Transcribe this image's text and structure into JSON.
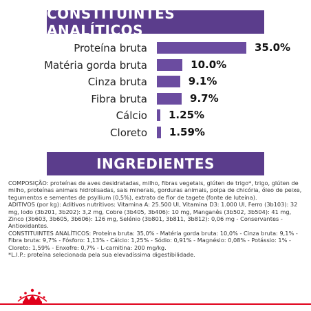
{
  "analytic_header": "CONSTITUINTES ANALÍTICOS",
  "ingredients_header": "INGREDIENTES",
  "nutrients": [
    {
      "label": "Proteína bruta",
      "value_text": "35.0%",
      "value": 35.0
    },
    {
      "label": "Matéria gorda bruta",
      "value_text": "10.0%",
      "value": 10.0
    },
    {
      "label": "Cinza bruta",
      "value_text": "9.1%",
      "value": 9.1
    },
    {
      "label": "Fibra bruta",
      "value_text": "9.7%",
      "value": 9.7
    },
    {
      "label": "Cálcio",
      "value_text": "1.25%",
      "value": 1.25
    },
    {
      "label": "Cloreto",
      "value_text": "1.59%",
      "value": 1.59
    }
  ],
  "colors": {
    "banner": "#5b3d8c",
    "bar": "#6b4ca0",
    "accent_red": "#e0001b"
  },
  "ingredients": {
    "composition": "COMPOSIÇÃO: proteínas de aves desidratadas, milho, fibras vegetais, glúten de trigo*, trigo, glúten de milho, proteínas animais hidrolisadas, sais minerais, gorduras animais, polpa de chicória, óleo de peixe, tegumentos e sementes de psyllium (0,5%), extrato de flor de tagete (fonte de luteína).",
    "additives": "ADITIVOS (por kg): Aditivos nutritivos: Vitamina A: 25.500 UI, Vitamina D3: 1.000 UI, Ferro (3b103): 32 mg, Iodo (3b201, 3b202): 3,2 mg, Cobre (3b405, 3b406): 10 mg, Manganês (3b502, 3b504): 41 mg, Zinco (3b603, 3b605, 3b606): 126 mg, Selénio (3b801, 3b811, 3b812): 0,06 mg - Conservantes - Antioxidantes.",
    "constituents": "CONSTITUINTES ANALÍTICOS: Proteína bruta: 35,0% - Matéria gorda bruta: 10,0% - Cinza bruta: 9,1% - Fibra bruta: 9,7% - Fósforo: 1,13% - Cálcio: 1,25% - Sódio: 0,91% - Magnésio: 0,08% - Potássio: 1% - Cloreto: 1,59% - Enxofre: 0,7% - L-carnitina: 200 mg/kg.",
    "footnote": "*L.I.P.: proteína selecionada pela sua elevadíssima digestibilidade."
  },
  "brand_logo": "crown-logo"
}
